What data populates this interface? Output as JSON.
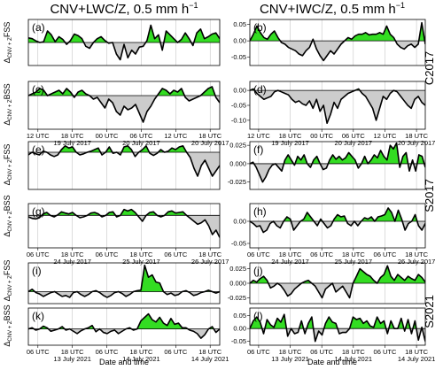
{
  "figure": {
    "col_titles": [
      "CNV+LWC/Z, 0.5 mm h",
      "CNV+IWC/Z, 0.5 mm h"
    ],
    "col_title_exp": "−1",
    "row_labels": [
      "C2017",
      "S2017",
      "S2021"
    ],
    "ylabel_fss_pre": "Δ",
    "ylabel_fss_sub": "CNV + Z",
    "ylabel_fss_post": "FSS",
    "ylabel_bss_post": "BSS",
    "xlabel": "Date and time",
    "colors": {
      "positive": "#33dd22",
      "negative": "#cccccc",
      "line": "#000000",
      "zero": "#000000"
    }
  },
  "chart_data": [
    {
      "type": "area",
      "panel": "(a)",
      "metric": "FSS",
      "ylim": [
        -0.06,
        0.06
      ],
      "yticks": [],
      "xtick_labels": [],
      "xtick_dates": [],
      "values": [
        0.012,
        0.01,
        0.004,
        0.0,
        0.002,
        0.03,
        0.02,
        0.002,
        0.015,
        0.008,
        -0.005,
        0.005,
        0.022,
        0.018,
        0.01,
        -0.01,
        -0.015,
        0.0,
        0.01,
        0.015,
        0.005,
        -0.002,
        0.0,
        -0.03,
        -0.045,
        -0.005,
        -0.04,
        -0.02,
        -0.03,
        -0.012,
        -0.01,
        0.005,
        0.045,
        0.01,
        0.02,
        -0.02,
        0.03,
        0.02,
        0.01,
        0.0,
        0.008,
        0.025,
        0.01,
        -0.008,
        0.025,
        0.035,
        0.01,
        0.015,
        0.022,
        0.025,
        0.01
      ]
    },
    {
      "type": "area",
      "panel": "(c)",
      "metric": "BSS",
      "ylim": [
        -0.095,
        0.04
      ],
      "yticks": [],
      "xtick_labels": [
        "12 UTC",
        "18 UTC",
        "00 UTC",
        "06 UTC",
        "12 UTC",
        "18 UTC"
      ],
      "xtick_dates": [
        "",
        "19 July 2017",
        "",
        "20 July 2017",
        "",
        "20 July 2017"
      ],
      "values": [
        0.0,
        0.005,
        0.01,
        0.02,
        0.015,
        0.0,
        0.005,
        0.01,
        0.015,
        0.005,
        0.02,
        0.01,
        -0.005,
        0.01,
        0.015,
        0.005,
        0.0,
        -0.01,
        -0.005,
        -0.02,
        -0.035,
        -0.01,
        -0.02,
        -0.045,
        -0.055,
        -0.03,
        -0.04,
        -0.035,
        -0.025,
        -0.05,
        -0.075,
        -0.045,
        -0.03,
        -0.01,
        0.005,
        0.02,
        0.015,
        0.005,
        0.015,
        0.01,
        0.02,
        -0.005,
        -0.015,
        -0.01,
        -0.005,
        0.0,
        0.01,
        0.02,
        0.025,
        -0.005,
        -0.02
      ]
    },
    {
      "type": "area",
      "panel": "(b)",
      "metric": "FSS",
      "ylim": [
        -0.075,
        0.065
      ],
      "yticks": [
        0.05,
        0.0,
        -0.05
      ],
      "xtick_labels": [],
      "xtick_dates": [],
      "values": [
        0.0,
        0.02,
        0.045,
        0.025,
        0.01,
        0.005,
        0.02,
        0.03,
        0.01,
        -0.005,
        -0.01,
        -0.02,
        -0.025,
        -0.03,
        -0.04,
        -0.045,
        -0.03,
        -0.02,
        0.005,
        -0.025,
        -0.045,
        -0.06,
        -0.045,
        -0.03,
        -0.04,
        -0.025,
        -0.01,
        0.0,
        0.01,
        0.005,
        0.015,
        0.02,
        0.02,
        0.025,
        0.018,
        0.02,
        0.02,
        0.025,
        0.02,
        0.045,
        0.02,
        0.01,
        -0.01,
        -0.02,
        -0.025,
        -0.015,
        -0.01,
        -0.02,
        -0.01,
        0.055,
        -0.01
      ]
    },
    {
      "type": "area",
      "panel": "(d)",
      "metric": "BSS",
      "ylim": [
        -0.13,
        0.03
      ],
      "yticks": [
        0.0,
        -0.05,
        -0.1
      ],
      "xtick_labels": [
        "12 UTC",
        "18 UTC",
        "00 UTC",
        "06 UTC",
        "12 UTC",
        "18 UTC"
      ],
      "xtick_dates": [
        "",
        "19 July 2017",
        "",
        "20 July 2017",
        "",
        "20 July 2017"
      ],
      "values": [
        0.0,
        0.005,
        -0.01,
        -0.02,
        -0.03,
        -0.025,
        -0.02,
        -0.005,
        0.0,
        -0.005,
        -0.01,
        -0.015,
        -0.03,
        -0.04,
        -0.035,
        -0.045,
        -0.05,
        -0.035,
        -0.06,
        -0.03,
        -0.07,
        -0.05,
        -0.11,
        -0.08,
        -0.04,
        -0.06,
        -0.03,
        -0.02,
        -0.01,
        -0.005,
        0.0,
        0.005,
        -0.01,
        -0.02,
        -0.04,
        -0.06,
        -0.1,
        -0.06,
        -0.02,
        -0.03,
        -0.01,
        0.0,
        -0.005,
        -0.02,
        -0.035,
        -0.05,
        -0.06,
        -0.03,
        -0.02,
        -0.04,
        -0.05
      ]
    },
    {
      "type": "area",
      "panel": "(e)",
      "metric": "FSS",
      "ylim": [
        -0.07,
        0.02
      ],
      "yticks": [],
      "xtick_labels": [],
      "xtick_dates": [],
      "values": [
        -0.005,
        0.0,
        -0.003,
        -0.005,
        0.002,
        0.0,
        -0.005,
        -0.008,
        -0.005,
        0.005,
        0.012,
        0.008,
        0.01,
        0.0,
        -0.005,
        -0.003,
        0.0,
        0.002,
        0.005,
        0.008,
        -0.005,
        0.0,
        0.01,
        -0.002,
        0.0,
        -0.005,
        0.01,
        0.012,
        0.005,
        -0.008,
        0.0,
        0.005,
        0.012,
        -0.002,
        -0.006,
        -0.002,
        0.005,
        0.0,
        0.002,
        0.008,
        0.005,
        0.01,
        0.012,
        0.0,
        -0.01,
        -0.03,
        -0.045,
        -0.025,
        -0.015,
        -0.03,
        -0.045,
        -0.035,
        -0.025
      ]
    },
    {
      "type": "area",
      "panel": "(g)",
      "metric": "BSS",
      "ylim": [
        -0.11,
        0.04
      ],
      "yticks": [],
      "xtick_labels": [
        "06 UTC",
        "18 UTC",
        "06 UTC",
        "18 UTC",
        "06 UTC",
        "18 UTC"
      ],
      "xtick_dates": [
        "",
        "24 July 2017",
        "",
        "25 July 2017",
        "",
        "26 July 2017"
      ],
      "values": [
        -0.005,
        -0.01,
        -0.012,
        -0.008,
        0.005,
        0.01,
        0.0,
        -0.005,
        0.002,
        0.012,
        0.008,
        0.005,
        0.01,
        0.0,
        -0.008,
        -0.005,
        0.0,
        0.008,
        0.01,
        0.005,
        -0.005,
        0.0,
        0.01,
        0.012,
        -0.005,
        0.0,
        0.02,
        0.015,
        0.02,
        0.01,
        -0.005,
        -0.02,
        0.0,
        0.01,
        0.012,
        0.0,
        -0.005,
        0.0,
        0.012,
        0.015,
        0.008,
        0.01,
        0.012,
        0.0,
        -0.01,
        -0.02,
        -0.03,
        -0.025,
        -0.015,
        -0.035,
        -0.065,
        -0.05,
        -0.075
      ]
    },
    {
      "type": "area",
      "panel": "(f)",
      "metric": "FSS",
      "ylim": [
        -0.035,
        0.03
      ],
      "yticks": [
        0.025,
        0.0,
        -0.025
      ],
      "xtick_labels": [],
      "xtick_dates": [],
      "values": [
        0.0,
        0.002,
        -0.005,
        -0.015,
        -0.025,
        -0.018,
        -0.008,
        -0.002,
        0.0,
        -0.005,
        -0.01,
        0.005,
        0.012,
        0.005,
        -0.002,
        0.01,
        0.005,
        0.012,
        0.0,
        -0.005,
        0.005,
        0.01,
        0.0,
        -0.008,
        -0.006,
        0.005,
        0.012,
        0.006,
        0.01,
        0.005,
        0.008,
        0.015,
        0.01,
        0.005,
        -0.006,
        0.0,
        0.01,
        0.0,
        0.005,
        0.012,
        0.008,
        0.018,
        0.01,
        0.005,
        0.025,
        0.02,
        0.028,
        -0.005,
        0.01,
        0.015,
        -0.01,
        0.005,
        -0.01,
        0.012,
        0.01,
        -0.005
      ]
    },
    {
      "type": "area",
      "panel": "(h)",
      "metric": "BSS",
      "ylim": [
        -0.06,
        0.04
      ],
      "yticks": [
        0.0,
        -0.05
      ],
      "xtick_labels": [
        "06 UTC",
        "18 UTC",
        "06 UTC",
        "18 UTC",
        "06 UTC",
        "18 UTC"
      ],
      "xtick_dates": [
        "",
        "24 July 2017",
        "",
        "25 July 2017",
        "",
        "26 July 2017"
      ],
      "values": [
        0.0,
        -0.005,
        -0.012,
        -0.01,
        -0.025,
        -0.02,
        -0.005,
        0.0,
        -0.01,
        -0.015,
        0.0,
        0.01,
        0.005,
        -0.02,
        -0.01,
        0.0,
        0.005,
        0.02,
        0.01,
        0.0,
        -0.01,
        0.005,
        -0.005,
        -0.015,
        -0.01,
        0.005,
        0.015,
        0.01,
        0.012,
        -0.005,
        -0.01,
        0.0,
        -0.01,
        0.0,
        0.008,
        0.005,
        0.01,
        0.0,
        0.01,
        0.012,
        0.015,
        0.03,
        0.02,
        0.0,
        0.025,
        0.005,
        -0.02,
        -0.005,
        0.0,
        0.015,
        -0.01,
        -0.02,
        -0.005
      ]
    },
    {
      "type": "area",
      "panel": "(i)",
      "metric": "FSS",
      "ylim": [
        -0.025,
        0.06
      ],
      "yticks": [],
      "xtick_labels": [],
      "xtick_dates": [],
      "values": [
        0.0,
        0.005,
        -0.002,
        -0.005,
        -0.01,
        -0.006,
        -0.002,
        0.0,
        -0.005,
        -0.01,
        -0.008,
        -0.012,
        -0.002,
        0.0,
        -0.006,
        -0.01,
        -0.006,
        0.0,
        0.002,
        -0.002,
        -0.008,
        -0.012,
        -0.008,
        -0.002,
        0.0,
        -0.004,
        -0.01,
        -0.006,
        0.0,
        0.002,
        0.003,
        0.055,
        0.03,
        0.035,
        0.02,
        0.018,
        0.0,
        -0.006,
        -0.003,
        -0.008,
        -0.006,
        0.0,
        0.002,
        -0.002,
        -0.008,
        -0.006,
        -0.002,
        0.0,
        0.003,
        0.0,
        -0.003,
        0.0
      ]
    },
    {
      "type": "area",
      "panel": "(k)",
      "metric": "BSS",
      "ylim": [
        -0.07,
        0.09
      ],
      "yticks": [],
      "xtick_labels": [
        "06 UTC",
        "18 UTC",
        "06 UTC",
        "18 UTC",
        "06 UTC",
        "18 UTC"
      ],
      "xtick_dates": [
        "",
        "13 July 2021",
        "",
        "14 July 2021",
        "",
        "14 July 2021"
      ],
      "values": [
        0.0,
        0.005,
        -0.005,
        0.0,
        0.012,
        0.005,
        -0.01,
        -0.005,
        0.0,
        0.01,
        -0.005,
        0.0,
        -0.01,
        -0.02,
        -0.008,
        0.0,
        0.005,
        0.015,
        -0.012,
        0.0,
        -0.015,
        -0.02,
        -0.01,
        -0.005,
        -0.02,
        -0.01,
        0.0,
        0.005,
        -0.005,
        0.0,
        0.035,
        0.05,
        0.065,
        0.04,
        0.03,
        0.05,
        0.025,
        0.015,
        0.045,
        0.02,
        0.025,
        0.005,
        0.005,
        -0.005,
        -0.01,
        -0.02,
        -0.04,
        -0.025,
        0.0,
        0.01,
        -0.015,
        0.0
      ]
    },
    {
      "type": "area",
      "panel": "(j)",
      "metric": "FSS",
      "ylim": [
        -0.035,
        0.035
      ],
      "yticks": [
        0.025,
        0.0,
        -0.025
      ],
      "xtick_labels": [],
      "xtick_dates": [],
      "values": [
        0.0,
        0.005,
        0.002,
        0.008,
        0.012,
        0.005,
        -0.008,
        -0.005,
        0.0,
        -0.004,
        -0.012,
        -0.022,
        -0.018,
        -0.01,
        -0.005,
        0.0,
        0.003,
        0.005,
        0.0,
        -0.005,
        -0.015,
        -0.025,
        -0.01,
        -0.005,
        0.0,
        -0.015,
        -0.01,
        -0.005,
        -0.015,
        -0.025,
        0.0,
        0.012,
        0.025,
        0.02,
        0.015,
        0.012,
        0.005,
        0.0,
        0.01,
        0.015,
        0.03,
        0.012,
        0.005,
        0.015,
        0.01,
        0.005,
        0.012,
        0.008,
        0.005,
        0.015,
        0.01,
        0.002
      ]
    },
    {
      "type": "area",
      "panel": "(l)",
      "metric": "BSS",
      "ylim": [
        -0.065,
        0.08
      ],
      "yticks": [
        0.05,
        0.0,
        -0.05
      ],
      "xtick_labels": [
        "06 UTC",
        "18 UTC",
        "06 UTC",
        "18 UTC",
        "06 UTC",
        "18 UTC"
      ],
      "xtick_dates": [
        "",
        "13 July 2021",
        "",
        "14 July 2021",
        "",
        "14 July 2021"
      ],
      "values": [
        0.0,
        0.03,
        0.045,
        0.025,
        -0.02,
        0.035,
        0.015,
        0.005,
        0.04,
        0.025,
        0.055,
        -0.03,
        0.0,
        -0.02,
        -0.015,
        0.03,
        -0.02,
        0.02,
        0.045,
        -0.05,
        -0.01,
        -0.025,
        0.02,
        0.045,
        0.025,
        0.02,
        -0.02,
        -0.015,
        -0.015,
        0.0,
        0.045,
        0.035,
        0.04,
        0.02,
        0.03,
        0.01,
        0.005,
        0.045,
        0.02,
        0.03,
        -0.02,
        0.03,
        0.0,
        0.0,
        0.04,
        -0.01,
        0.035,
        -0.02,
        0.03,
        -0.045,
        0.005,
        -0.05
      ]
    }
  ]
}
